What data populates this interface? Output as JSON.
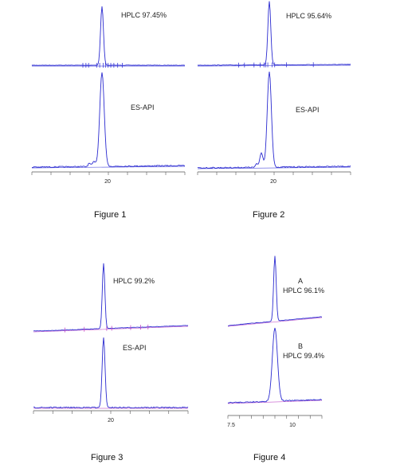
{
  "chart_data": [
    {
      "type": "line",
      "caption": "Figure 1",
      "traces": [
        {
          "label": "HPLC 97.45%",
          "baseline_color": "#3a3ad8",
          "ticks": [
            -5,
            -4.2,
            -3.5,
            -1.4,
            -0.6,
            0.3,
            0.9,
            1.6,
            2.3,
            3.1,
            4.1,
            5.3
          ]
        },
        {
          "label": "ES-API",
          "baseline_color": "#3a3ad8"
        }
      ],
      "x_tick_labels": [
        "20"
      ],
      "peak_x": 20
    },
    {
      "type": "line",
      "caption": "Figure 2",
      "traces": [
        {
          "label": "HPLC 95.64%",
          "baseline_color": "#3a3ad8",
          "ticks": [
            -8,
            -6.5,
            -4,
            -2.4,
            -1.4,
            -0.9,
            -0.4,
            0.7,
            1.4,
            4.5,
            11.5
          ]
        },
        {
          "label": "ES-API",
          "baseline_color": "#3a3ad8"
        }
      ],
      "x_tick_labels": [
        "20"
      ],
      "peak_x": 20
    },
    {
      "type": "line",
      "caption": "Figure 3",
      "traces": [
        {
          "label": "HPLC 99.2%",
          "baseline_color": "#c04bc8",
          "ticks": [
            -10,
            -5,
            0.8,
            2.1,
            7,
            9.6,
            11.5
          ]
        },
        {
          "label": "ES-API",
          "baseline_color": "#c04bc8"
        }
      ],
      "x_tick_labels": [
        "20"
      ],
      "peak_x": 20
    },
    {
      "type": "line",
      "caption": "Figure 4",
      "traces": [
        {
          "label_line1": "A",
          "label": "HPLC 96.1%",
          "baseline_color": "#c04bc8"
        },
        {
          "label_line1": "B",
          "label": "HPLC 99.4%",
          "baseline_color": "#c04bc8"
        }
      ],
      "x_tick_labels": [
        "7.5",
        "10"
      ],
      "peak_x": 9.3
    }
  ]
}
